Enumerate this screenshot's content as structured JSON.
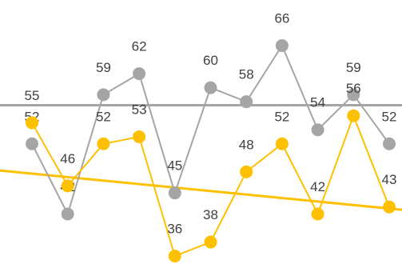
{
  "chart_data": {
    "type": "line",
    "ylim": [
      34.3,
      72.5
    ],
    "series": [
      {
        "name": null,
        "color": "#a5a5a5",
        "values": [
          52,
          42,
          59,
          62,
          45,
          60,
          58,
          66,
          54,
          59,
          52
        ]
      },
      {
        "name": null,
        "color": "#ffc000",
        "values": [
          55,
          46,
          52,
          53,
          36,
          38,
          48,
          52,
          42,
          56,
          43
        ]
      }
    ],
    "reference_line": {
      "value": 57.5,
      "color": "#a5a5a5"
    },
    "trend_line": {
      "values": [
        48.2,
        42.6
      ],
      "color": "#ffc000"
    }
  }
}
